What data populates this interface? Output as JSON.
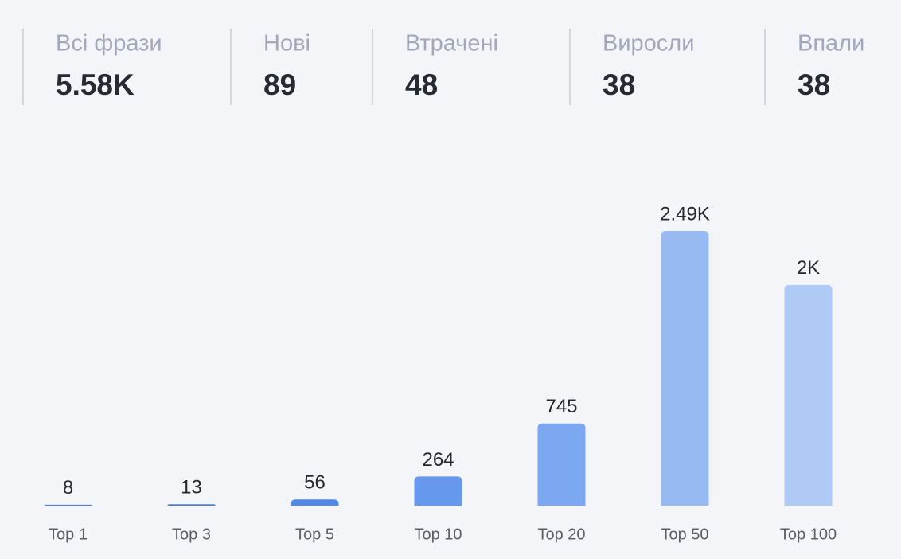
{
  "stats": [
    {
      "label": "Всі фрази",
      "value": "5.58K"
    },
    {
      "label": "Нові",
      "value": "89"
    },
    {
      "label": "Втрачені",
      "value": "48"
    },
    {
      "label": "Виросли",
      "value": "38"
    },
    {
      "label": "Впали",
      "value": "38"
    }
  ],
  "chart_data": {
    "type": "bar",
    "categories": [
      "Top 1",
      "Top 3",
      "Top 5",
      "Top 10",
      "Top 20",
      "Top 50",
      "Top 100"
    ],
    "values": [
      8,
      13,
      56,
      264,
      745,
      2490,
      2000
    ],
    "value_labels": [
      "8",
      "13",
      "56",
      "264",
      "745",
      "2.49K",
      "2K"
    ],
    "colors": [
      "#4a7fd9",
      "#4a7fd9",
      "#5089e8",
      "#6699ee",
      "#7ba8f1",
      "#97baf2",
      "#afcaf5"
    ]
  }
}
